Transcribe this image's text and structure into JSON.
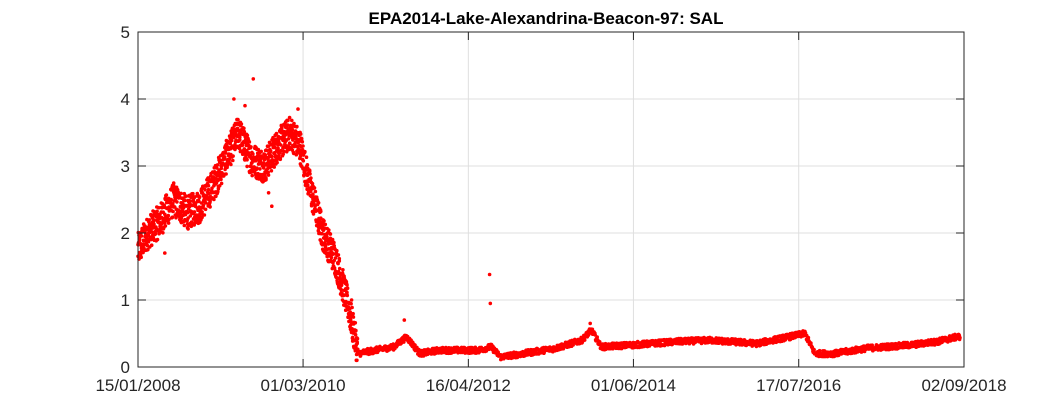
{
  "chart_data": {
    "type": "scatter",
    "title": "EPA2014-Lake-Alexandrina-Beacon-97: SAL",
    "xlabel": "",
    "ylabel": "",
    "x_ticks": [
      "15/01/2008",
      "01/03/2010",
      "16/04/2012",
      "01/06/2014",
      "17/07/2016",
      "02/09/2018"
    ],
    "x_range": [
      "15/01/2008",
      "02/09/2018"
    ],
    "y_ticks": [
      "0",
      "1",
      "2",
      "3",
      "4",
      "5"
    ],
    "ylim": [
      0,
      5
    ],
    "grid": true,
    "legend": "none",
    "marker_color": "#ff0000",
    "anchors": [
      [
        "2008-01-15",
        1.75
      ],
      [
        "2008-03-01",
        2.0
      ],
      [
        "2008-05-01",
        2.2
      ],
      [
        "2008-07-01",
        2.5
      ],
      [
        "2008-09-01",
        2.3
      ],
      [
        "2008-11-01",
        2.4
      ],
      [
        "2009-01-01",
        2.7
      ],
      [
        "2009-03-01",
        3.1
      ],
      [
        "2009-05-01",
        3.5
      ],
      [
        "2009-07-01",
        3.1
      ],
      [
        "2009-09-01",
        3.0
      ],
      [
        "2009-11-01",
        3.3
      ],
      [
        "2010-01-01",
        3.5
      ],
      [
        "2010-02-15",
        3.3
      ],
      [
        "2010-04-01",
        2.7
      ],
      [
        "2010-06-01",
        2.0
      ],
      [
        "2010-08-01",
        1.6
      ],
      [
        "2010-10-01",
        0.9
      ],
      [
        "2010-11-15",
        0.2
      ],
      [
        "2011-02-01",
        0.25
      ],
      [
        "2011-05-01",
        0.3
      ],
      [
        "2011-07-01",
        0.45
      ],
      [
        "2011-09-01",
        0.2
      ],
      [
        "2011-12-01",
        0.25
      ],
      [
        "2012-03-01",
        0.25
      ],
      [
        "2012-06-01",
        0.25
      ],
      [
        "2012-08-01",
        0.3
      ],
      [
        "2012-09-15",
        0.15
      ],
      [
        "2013-01-01",
        0.2
      ],
      [
        "2013-06-01",
        0.28
      ],
      [
        "2013-10-01",
        0.4
      ],
      [
        "2013-11-15",
        0.55
      ],
      [
        "2014-01-01",
        0.3
      ],
      [
        "2014-06-01",
        0.33
      ],
      [
        "2015-01-01",
        0.38
      ],
      [
        "2015-06-01",
        0.4
      ],
      [
        "2016-01-01",
        0.35
      ],
      [
        "2016-06-01",
        0.45
      ],
      [
        "2016-08-15",
        0.5
      ],
      [
        "2016-10-01",
        0.2
      ],
      [
        "2017-01-01",
        0.2
      ],
      [
        "2017-06-01",
        0.28
      ],
      [
        "2018-01-01",
        0.33
      ],
      [
        "2018-05-01",
        0.38
      ],
      [
        "2018-08-01",
        0.45
      ]
    ],
    "spikes": [
      [
        "2009-07-10",
        4.3
      ],
      [
        "2009-04-10",
        4.0
      ],
      [
        "2009-06-01",
        3.9
      ],
      [
        "2010-02-05",
        3.85
      ],
      [
        "2009-09-20",
        2.6
      ],
      [
        "2009-10-05",
        2.4
      ],
      [
        "2008-05-20",
        1.7
      ],
      [
        "2012-07-25",
        1.38
      ],
      [
        "2012-07-28",
        0.95
      ],
      [
        "2011-06-20",
        0.7
      ],
      [
        "2013-11-10",
        0.65
      ],
      [
        "2010-10-15",
        1.0
      ],
      [
        "2010-08-25",
        1.3
      ]
    ]
  }
}
